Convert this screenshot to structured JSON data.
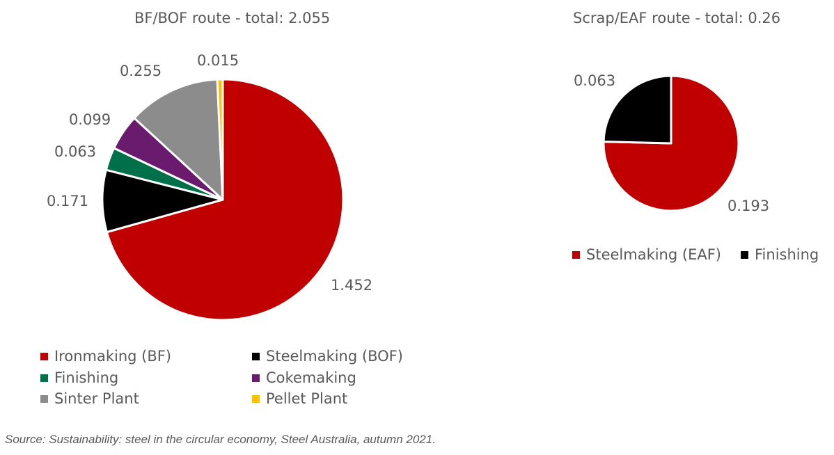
{
  "chart_data": [
    {
      "type": "pie",
      "title": "BF/BOF route - total: 2.055",
      "slices": [
        {
          "label": "Ironmaking (BF)",
          "value": 1.452,
          "value_label": "1.452",
          "color": "#C00000"
        },
        {
          "label": "Steelmaking (BOF)",
          "value": 0.171,
          "value_label": "0.171",
          "color": "#000000"
        },
        {
          "label": "Finishing",
          "value": 0.063,
          "value_label": "0.063",
          "color": "#00704A"
        },
        {
          "label": "Cokemaking",
          "value": 0.099,
          "value_label": "0.099",
          "color": "#6A1B6E"
        },
        {
          "label": "Sinter Plant",
          "value": 0.255,
          "value_label": "0.255",
          "color": "#8C8C8C"
        },
        {
          "label": "Pellet Plant",
          "value": 0.015,
          "value_label": "0.015",
          "color": "#FFC000"
        }
      ],
      "legend_position": "bottom"
    },
    {
      "type": "pie",
      "title": "Scrap/EAF route - total: 0.26",
      "slices": [
        {
          "label": "Steelmaking (EAF)",
          "value": 0.193,
          "value_label": "0.193",
          "color": "#C00000"
        },
        {
          "label": "Finishing",
          "value": 0.063,
          "value_label": "0.063",
          "color": "#000000"
        }
      ],
      "legend_position": "bottom"
    }
  ],
  "source": "Source: Sustainability: steel in the circular economy, Steel Australia, autumn 2021."
}
